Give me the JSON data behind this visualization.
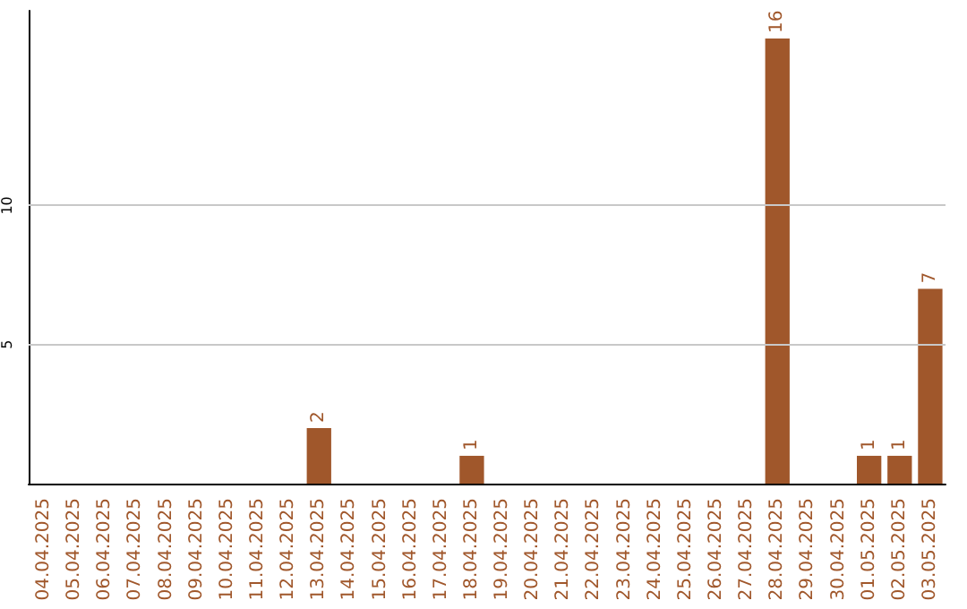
{
  "chart_data": {
    "type": "bar",
    "categories": [
      "04.04.2025",
      "05.04.2025",
      "06.04.2025",
      "07.04.2025",
      "08.04.2025",
      "09.04.2025",
      "10.04.2025",
      "11.04.2025",
      "12.04.2025",
      "13.04.2025",
      "14.04.2025",
      "15.04.2025",
      "16.04.2025",
      "17.04.2025",
      "18.04.2025",
      "19.04.2025",
      "20.04.2025",
      "21.04.2025",
      "22.04.2025",
      "23.04.2025",
      "24.04.2025",
      "25.04.2025",
      "26.04.2025",
      "27.04.2025",
      "28.04.2025",
      "29.04.2025",
      "30.04.2025",
      "01.05.2025",
      "02.05.2025",
      "03.05.2025"
    ],
    "values": [
      0,
      0,
      0,
      0,
      0,
      0,
      0,
      0,
      0,
      2,
      0,
      0,
      0,
      0,
      1,
      0,
      0,
      0,
      0,
      0,
      0,
      0,
      0,
      0,
      16,
      0,
      0,
      1,
      1,
      7
    ],
    "value_labels": [
      null,
      null,
      null,
      null,
      null,
      null,
      null,
      null,
      null,
      "2",
      null,
      null,
      null,
      null,
      "1",
      null,
      null,
      null,
      null,
      null,
      null,
      null,
      null,
      null,
      "16",
      null,
      null,
      "1",
      "1",
      "7"
    ],
    "color": "#a0572b",
    "ylim": [
      0,
      17
    ],
    "yticks": [
      5,
      10
    ],
    "grid": "y"
  }
}
